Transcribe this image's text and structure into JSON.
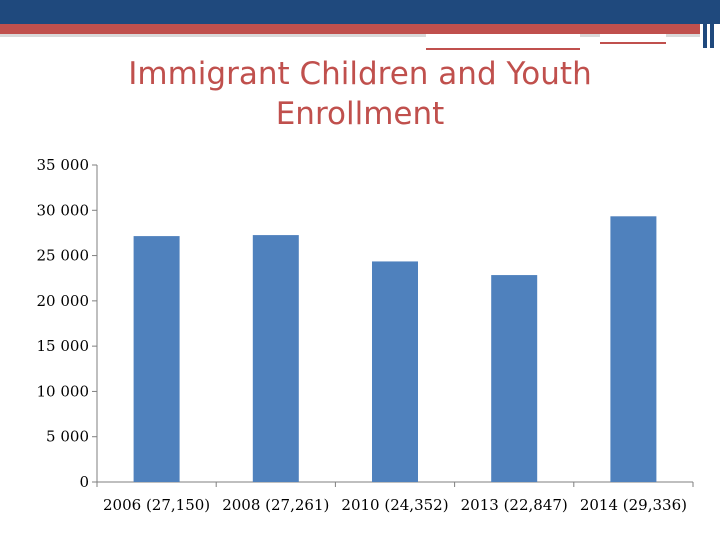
{
  "slide": {
    "colors": {
      "header_blue": "#1f497d",
      "header_red": "#c0504d",
      "title": "#c0504d",
      "bar": "#4f81bd"
    }
  },
  "chart_data": {
    "type": "bar",
    "title": "Immigrant Children and Youth Enrollment",
    "categories": [
      "2006 (27,150)",
      "2008 (27,261)",
      "2010 (24,352)",
      "2013 (22,847)",
      "2014 (29,336)"
    ],
    "values": [
      27150,
      27261,
      24352,
      22847,
      29336
    ],
    "ylim": [
      0,
      35000
    ],
    "yticks": [
      0,
      5000,
      10000,
      15000,
      20000,
      25000,
      30000,
      35000
    ],
    "ytick_labels": [
      "0",
      "5 000",
      "10 000",
      "15 000",
      "20 000",
      "25 000",
      "30 000",
      "35 000"
    ],
    "grid": false,
    "legend": "none"
  }
}
